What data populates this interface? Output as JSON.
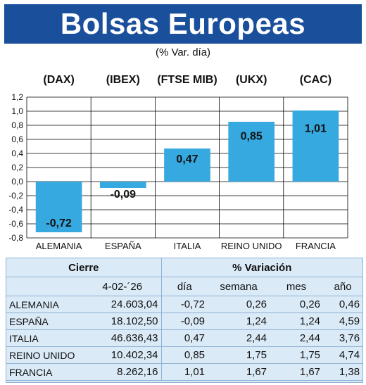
{
  "title": "Bolsas Europeas",
  "subtitle": "(% Var. día)",
  "chart_data": {
    "type": "bar",
    "index_labels": [
      "(DAX)",
      "(IBEX)",
      "(FTSE MIB)",
      "(UKX)",
      "(CAC)"
    ],
    "categories": [
      "ALEMANIA",
      "ESPAÑA",
      "ITALIA",
      "REINO UNIDO",
      "FRANCIA"
    ],
    "values": [
      -0.72,
      -0.09,
      0.47,
      0.85,
      1.01
    ],
    "value_labels": [
      "-0,72",
      "-0,09",
      "0,47",
      "0,85",
      "1,01"
    ],
    "ylim": [
      -0.8,
      1.2
    ],
    "yticks": [
      1.2,
      1.0,
      0.8,
      0.6,
      0.4,
      0.2,
      0.0,
      -0.2,
      -0.4,
      -0.6,
      -0.8
    ],
    "ytick_labels": [
      "1,2",
      "1,0",
      "0,8",
      "0,6",
      "0,4",
      "0,2",
      "0,0",
      "-0,2",
      "-0,4",
      "-0,6",
      "-0,8"
    ],
    "grid": true,
    "bar_color": "#36a9e1"
  },
  "table": {
    "group_headers": [
      "Cierre",
      "% Variación"
    ],
    "date": "4-02-´26",
    "columns": [
      "día",
      "semana",
      "mes",
      "año"
    ],
    "rows": [
      {
        "country": "ALEMANIA",
        "close": "24.603,04",
        "dia": "-0,72",
        "semana": "0,26",
        "mes": "0,26",
        "ano": "0,46"
      },
      {
        "country": "ESPAÑA",
        "close": "18.102,50",
        "dia": "-0,09",
        "semana": "1,24",
        "mes": "1,24",
        "ano": "4,59"
      },
      {
        "country": "ITALIA",
        "close": "46.636,43",
        "dia": "0,47",
        "semana": "2,44",
        "mes": "2,44",
        "ano": "3,76"
      },
      {
        "country": "REINO UNIDO",
        "close": "10.402,34",
        "dia": "0,85",
        "semana": "1,75",
        "mes": "1,75",
        "ano": "4,74"
      },
      {
        "country": "FRANCIA",
        "close": "8.262,16",
        "dia": "1,01",
        "semana": "1,67",
        "mes": "1,67",
        "ano": "1,38"
      }
    ]
  }
}
